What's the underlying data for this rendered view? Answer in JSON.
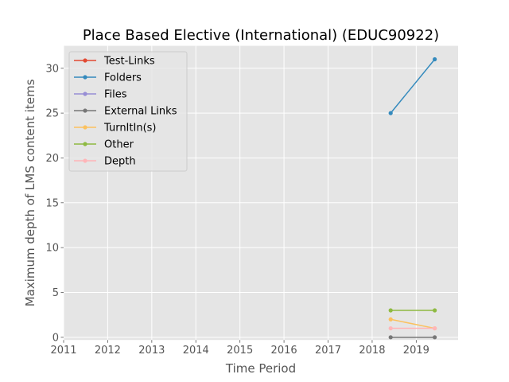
{
  "chart_data": {
    "type": "line",
    "title": "Place Based Elective (International) (EDUC90922)",
    "xlabel": "Time Period",
    "ylabel": "Maximum depth of LMS content items",
    "xlim": [
      2011.0,
      2019.95
    ],
    "ylim": [
      -0.3,
      32.5
    ],
    "xticks": [
      "2011",
      "2012",
      "2013",
      "2014",
      "2015",
      "2016",
      "2017",
      "2018",
      "2019"
    ],
    "yticks": [
      "0",
      "5",
      "10",
      "15",
      "20",
      "25",
      "30"
    ],
    "grid": true,
    "legend_position": "top-left",
    "x": [
      2018.42,
      2019.42
    ],
    "series": [
      {
        "name": "Test-Links",
        "color": "#E24A33",
        "values": [
          null,
          null
        ]
      },
      {
        "name": "Folders",
        "color": "#348ABD",
        "values": [
          25,
          31
        ]
      },
      {
        "name": "Files",
        "color": "#988ED5",
        "values": [
          null,
          null
        ]
      },
      {
        "name": "External Links",
        "color": "#777777",
        "values": [
          0,
          0
        ]
      },
      {
        "name": "TurnItIn(s)",
        "color": "#FBC15E",
        "values": [
          2,
          1
        ]
      },
      {
        "name": "Other",
        "color": "#8EBA42",
        "values": [
          3,
          3
        ]
      },
      {
        "name": "Depth",
        "color": "#FFB5B8",
        "values": [
          1,
          1
        ]
      }
    ]
  }
}
